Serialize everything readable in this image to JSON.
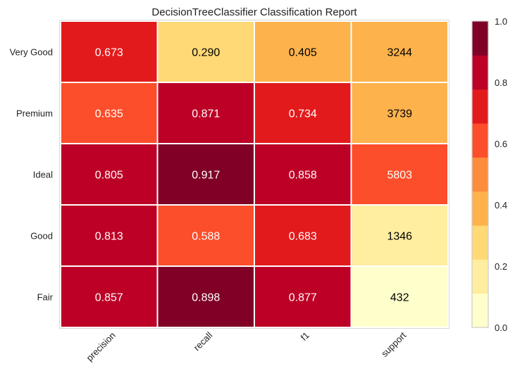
{
  "chart_data": {
    "type": "heatmap",
    "title": "DecisionTreeClassifier Classification Report",
    "columns": [
      "precision",
      "recall",
      "f1",
      "support"
    ],
    "rows": [
      "Very Good",
      "Premium",
      "Ideal",
      "Good",
      "Fair"
    ],
    "cells": [
      {
        "row": "Very Good",
        "values": [
          0.673,
          0.29,
          0.405,
          3244
        ],
        "labels": [
          "0.673",
          "0.290",
          "0.405",
          "3244"
        ]
      },
      {
        "row": "Premium",
        "values": [
          0.635,
          0.871,
          0.734,
          3739
        ],
        "labels": [
          "0.635",
          "0.871",
          "0.734",
          "3739"
        ]
      },
      {
        "row": "Ideal",
        "values": [
          0.805,
          0.917,
          0.858,
          5803
        ],
        "labels": [
          "0.805",
          "0.917",
          "0.858",
          "5803"
        ]
      },
      {
        "row": "Good",
        "values": [
          0.813,
          0.588,
          0.683,
          1346
        ],
        "labels": [
          "0.813",
          "0.588",
          "0.683",
          "1346"
        ]
      },
      {
        "row": "Fair",
        "values": [
          0.857,
          0.898,
          0.877,
          432
        ],
        "labels": [
          "0.857",
          "0.898",
          "0.877",
          "432"
        ]
      }
    ],
    "support_range": [
      0,
      9000
    ],
    "colorbar": {
      "range": [
        0,
        1
      ],
      "tick_labels": [
        "0.0",
        "0.2",
        "0.4",
        "0.6",
        "0.8",
        "1.0"
      ],
      "levels": 9,
      "colors": [
        "#ffffcc",
        "#ffeda0",
        "#fed976",
        "#feb24c",
        "#fd8d3c",
        "#fc4e2a",
        "#e31a1c",
        "#bd0026",
        "#800026"
      ]
    },
    "grid": true,
    "grid_color": "#ffffff",
    "frame_color": "#cccccc"
  }
}
